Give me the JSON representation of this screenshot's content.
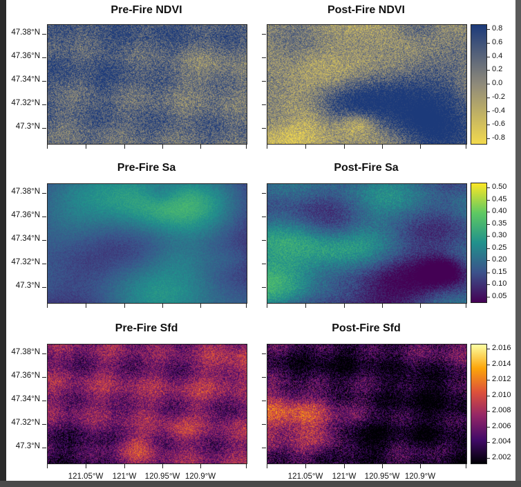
{
  "chart_data": [
    {
      "type": "heatmap",
      "title": "Pre-Fire NDVI",
      "ylabel_ticks": [
        "47.38°N",
        "47.36°N",
        "47.34°N",
        "47.32°N",
        "47.3°N"
      ],
      "colormap": "cividis-reversed",
      "colors": [
        "#f2d94e",
        "#8f8a7a",
        "#1c3a7a"
      ],
      "range": [
        -0.85,
        0.9
      ]
    },
    {
      "type": "heatmap",
      "title": "Post-Fire NDVI",
      "colorbar_ticks": [
        "0.8",
        "0.6",
        "0.4",
        "0.2",
        "0.0",
        "-0.2",
        "-0.4",
        "-0.6",
        "-0.8"
      ],
      "colormap": "cividis-reversed",
      "colors": [
        "#f2d94e",
        "#8f8a7a",
        "#1c3a7a"
      ],
      "range": [
        -0.85,
        0.9
      ]
    },
    {
      "type": "heatmap",
      "title": "Pre-Fire Sa",
      "ylabel_ticks": [
        "47.38°N",
        "47.36°N",
        "47.34°N",
        "47.32°N",
        "47.3°N"
      ],
      "colormap": "viridis",
      "colors": [
        "#440154",
        "#3b528b",
        "#21918c",
        "#5ec962",
        "#fde725"
      ],
      "range": [
        0.04,
        0.51
      ]
    },
    {
      "type": "heatmap",
      "title": "Post-Fire Sa",
      "colorbar_ticks": [
        "0.50",
        "0.45",
        "0.40",
        "0.35",
        "0.30",
        "0.25",
        "0.20",
        "0.15",
        "0.10",
        "0.05"
      ],
      "colormap": "viridis",
      "colors": [
        "#440154",
        "#3b528b",
        "#21918c",
        "#5ec962",
        "#fde725"
      ],
      "range": [
        0.04,
        0.51
      ]
    },
    {
      "type": "heatmap",
      "title": "Pre-Fire Sfd",
      "ylabel_ticks": [
        "47.38°N",
        "47.36°N",
        "47.34°N",
        "47.32°N",
        "47.3°N"
      ],
      "xlabel_ticks": [
        "121.05°W",
        "121°W",
        "120.95°W",
        "120.9°W"
      ],
      "colormap": "inferno",
      "colors": [
        "#000004",
        "#420a68",
        "#932667",
        "#dd513a",
        "#fca50a",
        "#fcffa4"
      ],
      "range": [
        2.0005,
        2.0172
      ]
    },
    {
      "type": "heatmap",
      "title": "Post-Fire Sfd",
      "xlabel_ticks": [
        "121.05°W",
        "121°W",
        "120.95°W",
        "120.9°W"
      ],
      "colorbar_ticks": [
        "2.016",
        "2.014",
        "2.012",
        "2.010",
        "2.008",
        "2.006",
        "2.004",
        "2.002"
      ],
      "colormap": "inferno",
      "colors": [
        "#000004",
        "#420a68",
        "#932667",
        "#dd513a",
        "#fca50a",
        "#fcffa4"
      ],
      "range": [
        2.0005,
        2.0172
      ]
    }
  ]
}
